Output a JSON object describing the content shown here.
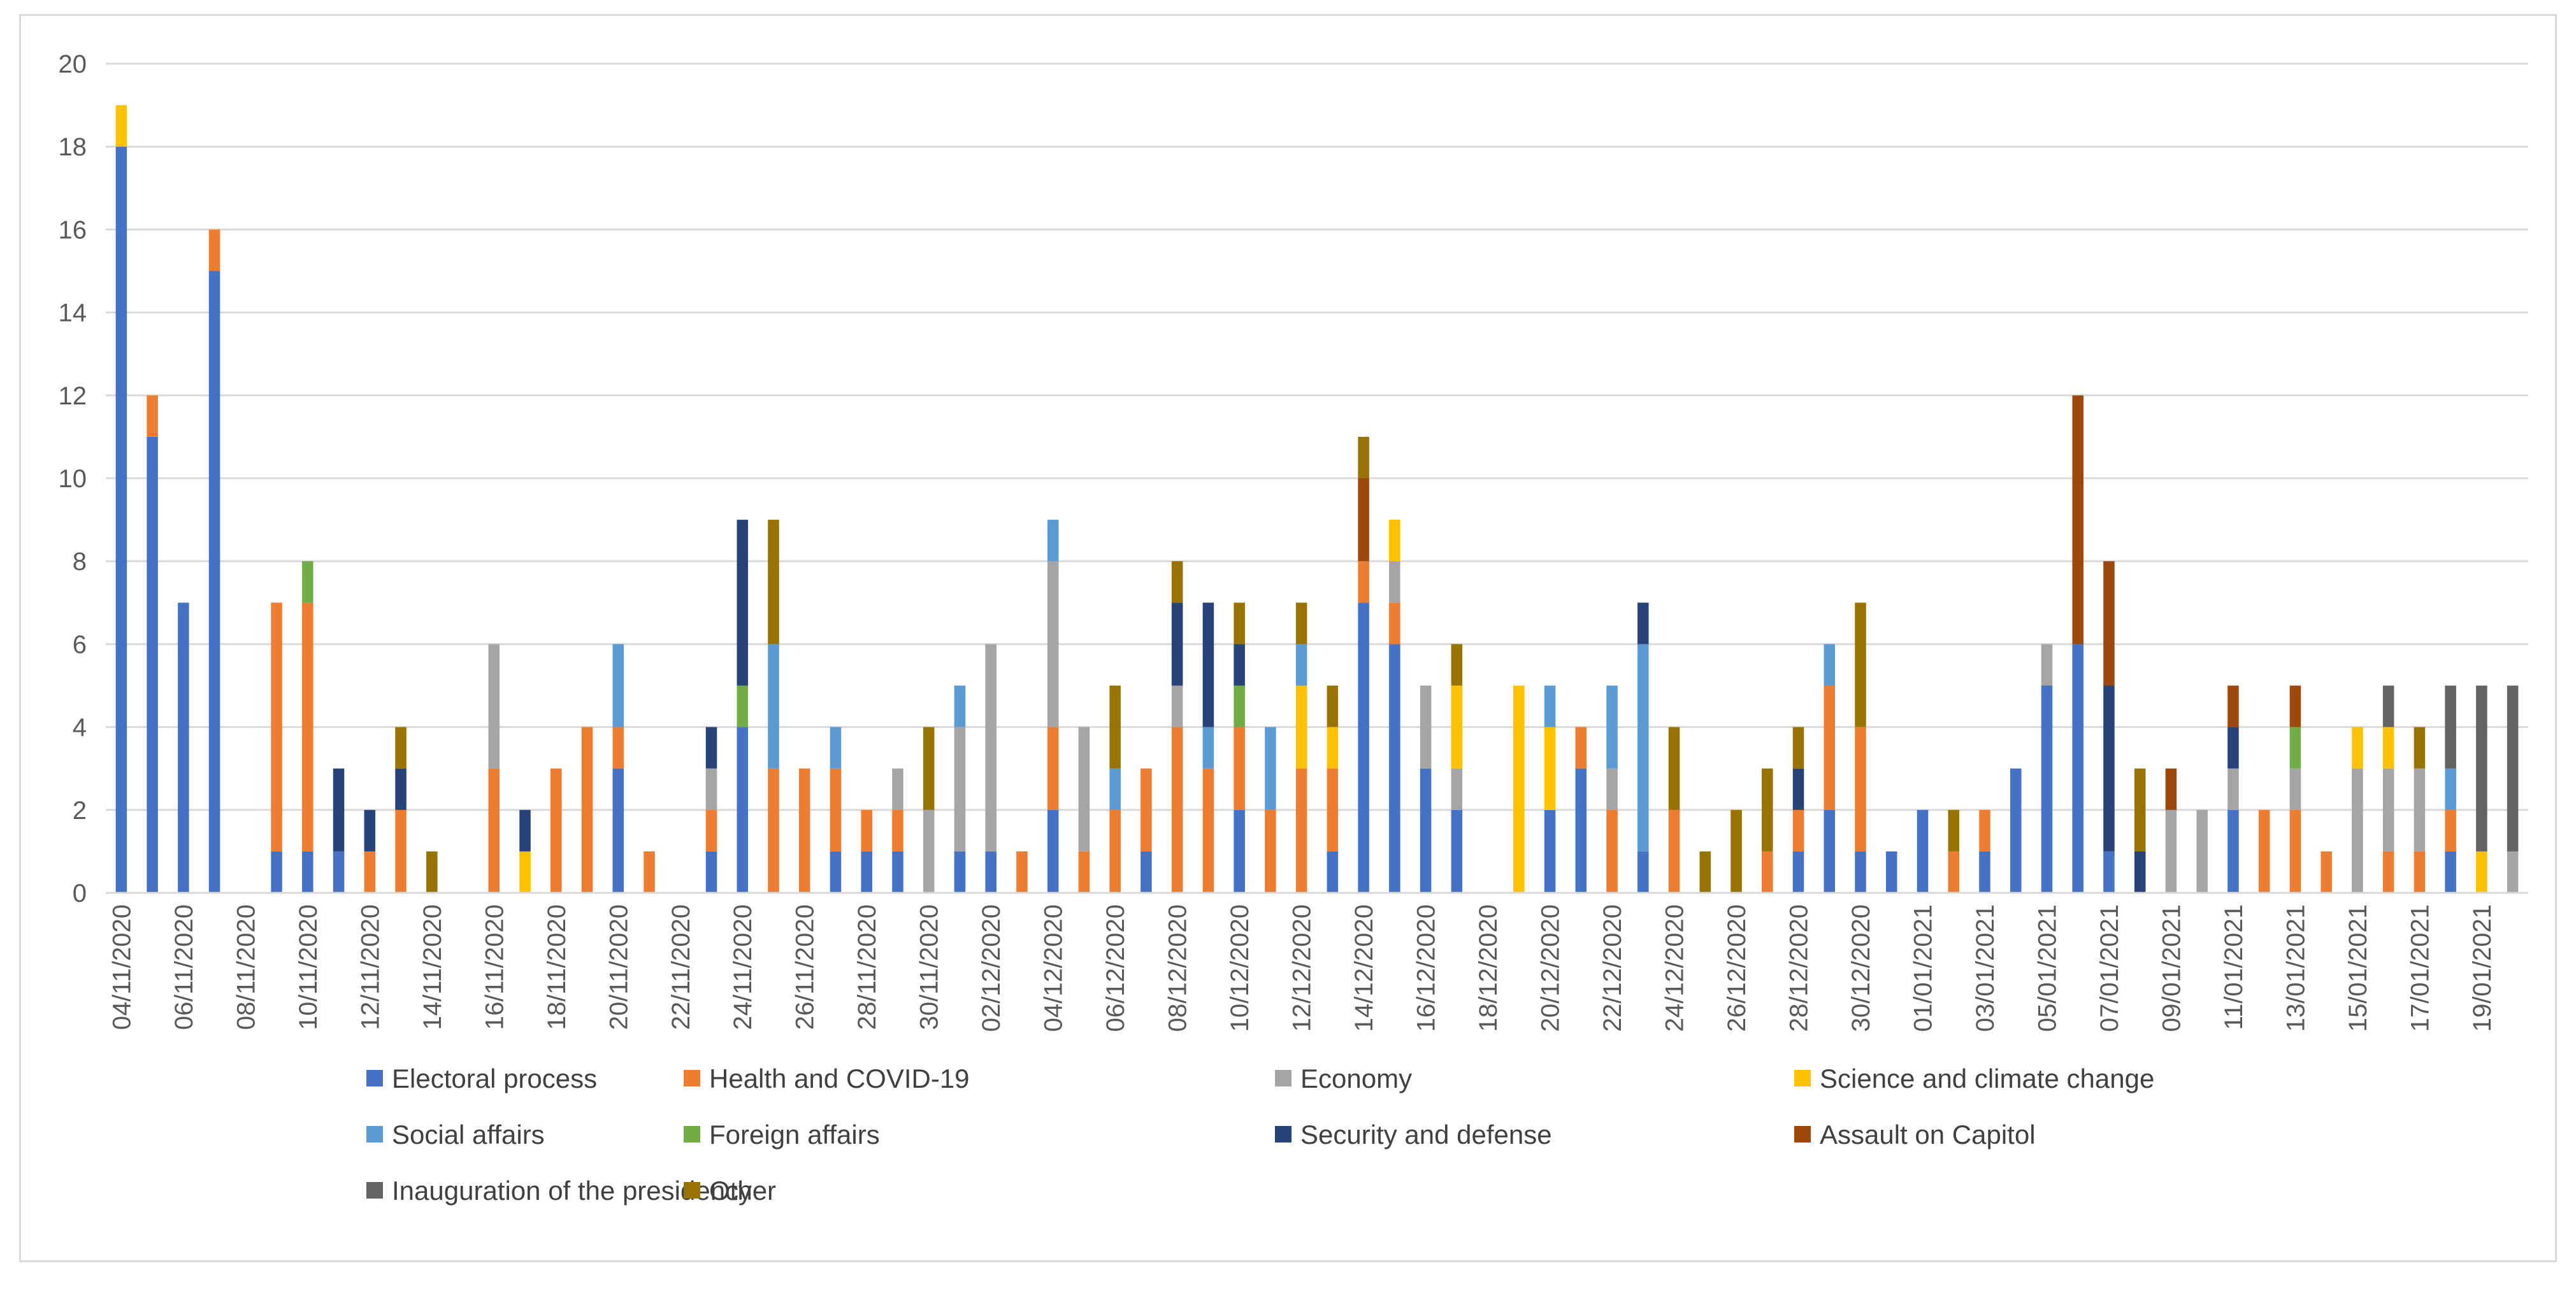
{
  "chart_data": {
    "type": "bar",
    "stacked": true,
    "title": "",
    "xlabel": "",
    "ylabel": "",
    "ylim": [
      0,
      20
    ],
    "yticks": [
      0,
      2,
      4,
      6,
      8,
      10,
      12,
      14,
      16,
      18,
      20
    ],
    "grid": true,
    "legend_position": "bottom",
    "categories": [
      "04/11/2020",
      "05/11/2020",
      "06/11/2020",
      "07/11/2020",
      "08/11/2020",
      "09/11/2020",
      "10/11/2020",
      "11/11/2020",
      "12/11/2020",
      "13/11/2020",
      "14/11/2020",
      "15/11/2020",
      "16/11/2020",
      "17/11/2020",
      "18/11/2020",
      "19/11/2020",
      "20/11/2020",
      "21/11/2020",
      "22/11/2020",
      "23/11/2020",
      "24/11/2020",
      "25/11/2020",
      "26/11/2020",
      "27/11/2020",
      "28/11/2020",
      "29/11/2020",
      "30/11/2020",
      "01/12/2020",
      "02/12/2020",
      "03/12/2020",
      "04/12/2020",
      "05/12/2020",
      "06/12/2020",
      "07/12/2020",
      "08/12/2020",
      "09/12/2020",
      "10/12/2020",
      "11/12/2020",
      "12/12/2020",
      "13/12/2020",
      "14/12/2020",
      "15/12/2020",
      "16/12/2020",
      "17/12/2020",
      "18/12/2020",
      "19/12/2020",
      "20/12/2020",
      "21/12/2020",
      "22/12/2020",
      "23/12/2020",
      "24/12/2020",
      "25/12/2020",
      "26/12/2020",
      "27/12/2020",
      "28/12/2020",
      "29/12/2020",
      "30/12/2020",
      "31/12/2020",
      "01/01/2021",
      "02/01/2021",
      "03/01/2021",
      "04/01/2021",
      "05/01/2021",
      "06/01/2021",
      "07/01/2021",
      "08/01/2021",
      "09/01/2021",
      "10/01/2021",
      "11/01/2021",
      "12/01/2021",
      "13/01/2021",
      "14/01/2021",
      "15/01/2021",
      "16/01/2021",
      "17/01/2021",
      "18/01/2021",
      "19/01/2021",
      "20/01/2021"
    ],
    "x_tick_labels": [
      "04/11/2020",
      "06/11/2020",
      "08/11/2020",
      "10/11/2020",
      "12/11/2020",
      "14/11/2020",
      "16/11/2020",
      "18/11/2020",
      "20/11/2020",
      "22/11/2020",
      "24/11/2020",
      "26/11/2020",
      "28/11/2020",
      "30/11/2020",
      "02/12/2020",
      "04/12/2020",
      "06/12/2020",
      "08/12/2020",
      "10/12/2020",
      "12/12/2020",
      "14/12/2020",
      "16/12/2020",
      "18/12/2020",
      "20/12/2020",
      "22/12/2020",
      "24/12/2020",
      "26/12/2020",
      "28/12/2020",
      "30/12/2020",
      "01/01/2021",
      "03/01/2021",
      "05/01/2021",
      "07/01/2021",
      "09/01/2021",
      "11/01/2021",
      "13/01/2021",
      "15/01/2021",
      "17/01/2021",
      "19/01/2021"
    ],
    "series": [
      {
        "name": "Electoral process",
        "color": "#4472C4",
        "values": [
          18,
          11,
          7,
          15,
          0,
          1,
          1,
          1,
          0,
          0,
          0,
          0,
          0,
          0,
          0,
          0,
          3,
          0,
          0,
          1,
          4,
          0,
          0,
          1,
          1,
          1,
          0,
          1,
          1,
          0,
          2,
          0,
          0,
          1,
          0,
          0,
          2,
          0,
          0,
          1,
          7,
          6,
          3,
          2,
          0,
          0,
          2,
          3,
          0,
          1,
          0,
          0,
          0,
          0,
          1,
          2,
          1,
          1,
          2,
          0,
          1,
          3,
          5,
          6,
          1,
          0,
          0,
          0,
          2,
          0,
          0,
          0,
          0,
          0,
          0,
          1,
          0,
          0
        ]
      },
      {
        "name": "Health and COVID-19",
        "color": "#ED7D31",
        "values": [
          0,
          1,
          0,
          1,
          0,
          6,
          6,
          0,
          1,
          2,
          0,
          0,
          3,
          0,
          3,
          4,
          1,
          1,
          0,
          1,
          0,
          3,
          3,
          2,
          1,
          1,
          0,
          0,
          0,
          1,
          2,
          1,
          2,
          2,
          4,
          3,
          2,
          2,
          3,
          2,
          1,
          1,
          0,
          0,
          0,
          0,
          0,
          1,
          2,
          0,
          2,
          0,
          0,
          1,
          1,
          3,
          3,
          0,
          0,
          1,
          1,
          0,
          0,
          0,
          0,
          0,
          0,
          0,
          0,
          2,
          2,
          1,
          0,
          1,
          1,
          1,
          0,
          0
        ]
      },
      {
        "name": "Economy",
        "color": "#A5A5A5",
        "values": [
          0,
          0,
          0,
          0,
          0,
          0,
          0,
          0,
          0,
          0,
          0,
          0,
          3,
          0,
          0,
          0,
          0,
          0,
          0,
          1,
          0,
          0,
          0,
          0,
          0,
          1,
          2,
          3,
          5,
          0,
          4,
          3,
          0,
          0,
          1,
          0,
          0,
          0,
          0,
          0,
          0,
          1,
          2,
          1,
          0,
          0,
          0,
          0,
          1,
          0,
          0,
          0,
          0,
          0,
          0,
          0,
          0,
          0,
          0,
          0,
          0,
          0,
          1,
          0,
          0,
          0,
          2,
          2,
          1,
          0,
          1,
          0,
          3,
          2,
          2,
          0,
          0,
          1
        ]
      },
      {
        "name": "Science and climate change",
        "color": "#FFC000",
        "values": [
          1,
          0,
          0,
          0,
          0,
          0,
          0,
          0,
          0,
          0,
          0,
          0,
          0,
          1,
          0,
          0,
          0,
          0,
          0,
          0,
          0,
          0,
          0,
          0,
          0,
          0,
          0,
          0,
          0,
          0,
          0,
          0,
          0,
          0,
          0,
          0,
          0,
          0,
          2,
          1,
          0,
          1,
          0,
          2,
          0,
          5,
          2,
          0,
          0,
          0,
          0,
          0,
          0,
          0,
          0,
          0,
          0,
          0,
          0,
          0,
          0,
          0,
          0,
          0,
          0,
          0,
          0,
          0,
          0,
          0,
          0,
          0,
          1,
          1,
          0,
          0,
          1,
          0
        ]
      },
      {
        "name": "Social affairs",
        "color": "#5B9BD5",
        "values": [
          0,
          0,
          0,
          0,
          0,
          0,
          0,
          0,
          0,
          0,
          0,
          0,
          0,
          0,
          0,
          0,
          2,
          0,
          0,
          0,
          0,
          3,
          0,
          1,
          0,
          0,
          0,
          1,
          0,
          0,
          1,
          0,
          1,
          0,
          0,
          1,
          0,
          2,
          1,
          0,
          0,
          0,
          0,
          0,
          0,
          0,
          1,
          0,
          2,
          5,
          0,
          0,
          0,
          0,
          0,
          1,
          0,
          0,
          0,
          0,
          0,
          0,
          0,
          0,
          0,
          0,
          0,
          0,
          0,
          0,
          0,
          0,
          0,
          0,
          0,
          1,
          0,
          0
        ]
      },
      {
        "name": "Foreign affairs",
        "color": "#70AD47",
        "values": [
          0,
          0,
          0,
          0,
          0,
          0,
          1,
          0,
          0,
          0,
          0,
          0,
          0,
          0,
          0,
          0,
          0,
          0,
          0,
          0,
          1,
          0,
          0,
          0,
          0,
          0,
          0,
          0,
          0,
          0,
          0,
          0,
          0,
          0,
          0,
          0,
          1,
          0,
          0,
          0,
          0,
          0,
          0,
          0,
          0,
          0,
          0,
          0,
          0,
          0,
          0,
          0,
          0,
          0,
          0,
          0,
          0,
          0,
          0,
          0,
          0,
          0,
          0,
          0,
          0,
          0,
          0,
          0,
          0,
          0,
          1,
          0,
          0,
          0,
          0,
          0,
          0,
          0
        ]
      },
      {
        "name": "Security and defense",
        "color": "#264478",
        "values": [
          0,
          0,
          0,
          0,
          0,
          0,
          0,
          2,
          1,
          1,
          0,
          0,
          0,
          1,
          0,
          0,
          0,
          0,
          0,
          1,
          4,
          0,
          0,
          0,
          0,
          0,
          0,
          0,
          0,
          0,
          0,
          0,
          0,
          0,
          2,
          3,
          1,
          0,
          0,
          0,
          0,
          0,
          0,
          0,
          0,
          0,
          0,
          0,
          0,
          1,
          0,
          0,
          0,
          0,
          1,
          0,
          0,
          0,
          0,
          0,
          0,
          0,
          0,
          0,
          4,
          1,
          0,
          0,
          1,
          0,
          0,
          0,
          0,
          0,
          0,
          0,
          0,
          0
        ]
      },
      {
        "name": "Assault on Capitol",
        "color": "#9E480E",
        "values": [
          0,
          0,
          0,
          0,
          0,
          0,
          0,
          0,
          0,
          0,
          0,
          0,
          0,
          0,
          0,
          0,
          0,
          0,
          0,
          0,
          0,
          0,
          0,
          0,
          0,
          0,
          0,
          0,
          0,
          0,
          0,
          0,
          0,
          0,
          0,
          0,
          0,
          0,
          0,
          0,
          2,
          0,
          0,
          0,
          0,
          0,
          0,
          0,
          0,
          0,
          0,
          0,
          0,
          0,
          0,
          0,
          0,
          0,
          0,
          0,
          0,
          0,
          0,
          6,
          3,
          0,
          1,
          0,
          1,
          0,
          1,
          0,
          0,
          0,
          0,
          0,
          0,
          0
        ]
      },
      {
        "name": "Inauguration of the presidency",
        "color": "#636363",
        "values": [
          0,
          0,
          0,
          0,
          0,
          0,
          0,
          0,
          0,
          0,
          0,
          0,
          0,
          0,
          0,
          0,
          0,
          0,
          0,
          0,
          0,
          0,
          0,
          0,
          0,
          0,
          0,
          0,
          0,
          0,
          0,
          0,
          0,
          0,
          0,
          0,
          0,
          0,
          0,
          0,
          0,
          0,
          0,
          0,
          0,
          0,
          0,
          0,
          0,
          0,
          0,
          0,
          0,
          0,
          0,
          0,
          0,
          0,
          0,
          0,
          0,
          0,
          0,
          0,
          0,
          0,
          0,
          0,
          0,
          0,
          0,
          0,
          0,
          1,
          0,
          2,
          4,
          4
        ]
      },
      {
        "name": "Other",
        "color": "#997300",
        "values": [
          0,
          0,
          0,
          0,
          0,
          0,
          0,
          0,
          0,
          1,
          1,
          0,
          0,
          0,
          0,
          0,
          0,
          0,
          0,
          0,
          0,
          3,
          0,
          0,
          0,
          0,
          2,
          0,
          0,
          0,
          0,
          0,
          2,
          0,
          1,
          0,
          1,
          0,
          1,
          1,
          1,
          0,
          0,
          1,
          0,
          0,
          0,
          0,
          0,
          0,
          2,
          1,
          2,
          2,
          1,
          0,
          3,
          0,
          0,
          1,
          0,
          0,
          0,
          0,
          0,
          2,
          0,
          0,
          0,
          0,
          0,
          0,
          0,
          0,
          1,
          0,
          0,
          0
        ]
      }
    ]
  }
}
